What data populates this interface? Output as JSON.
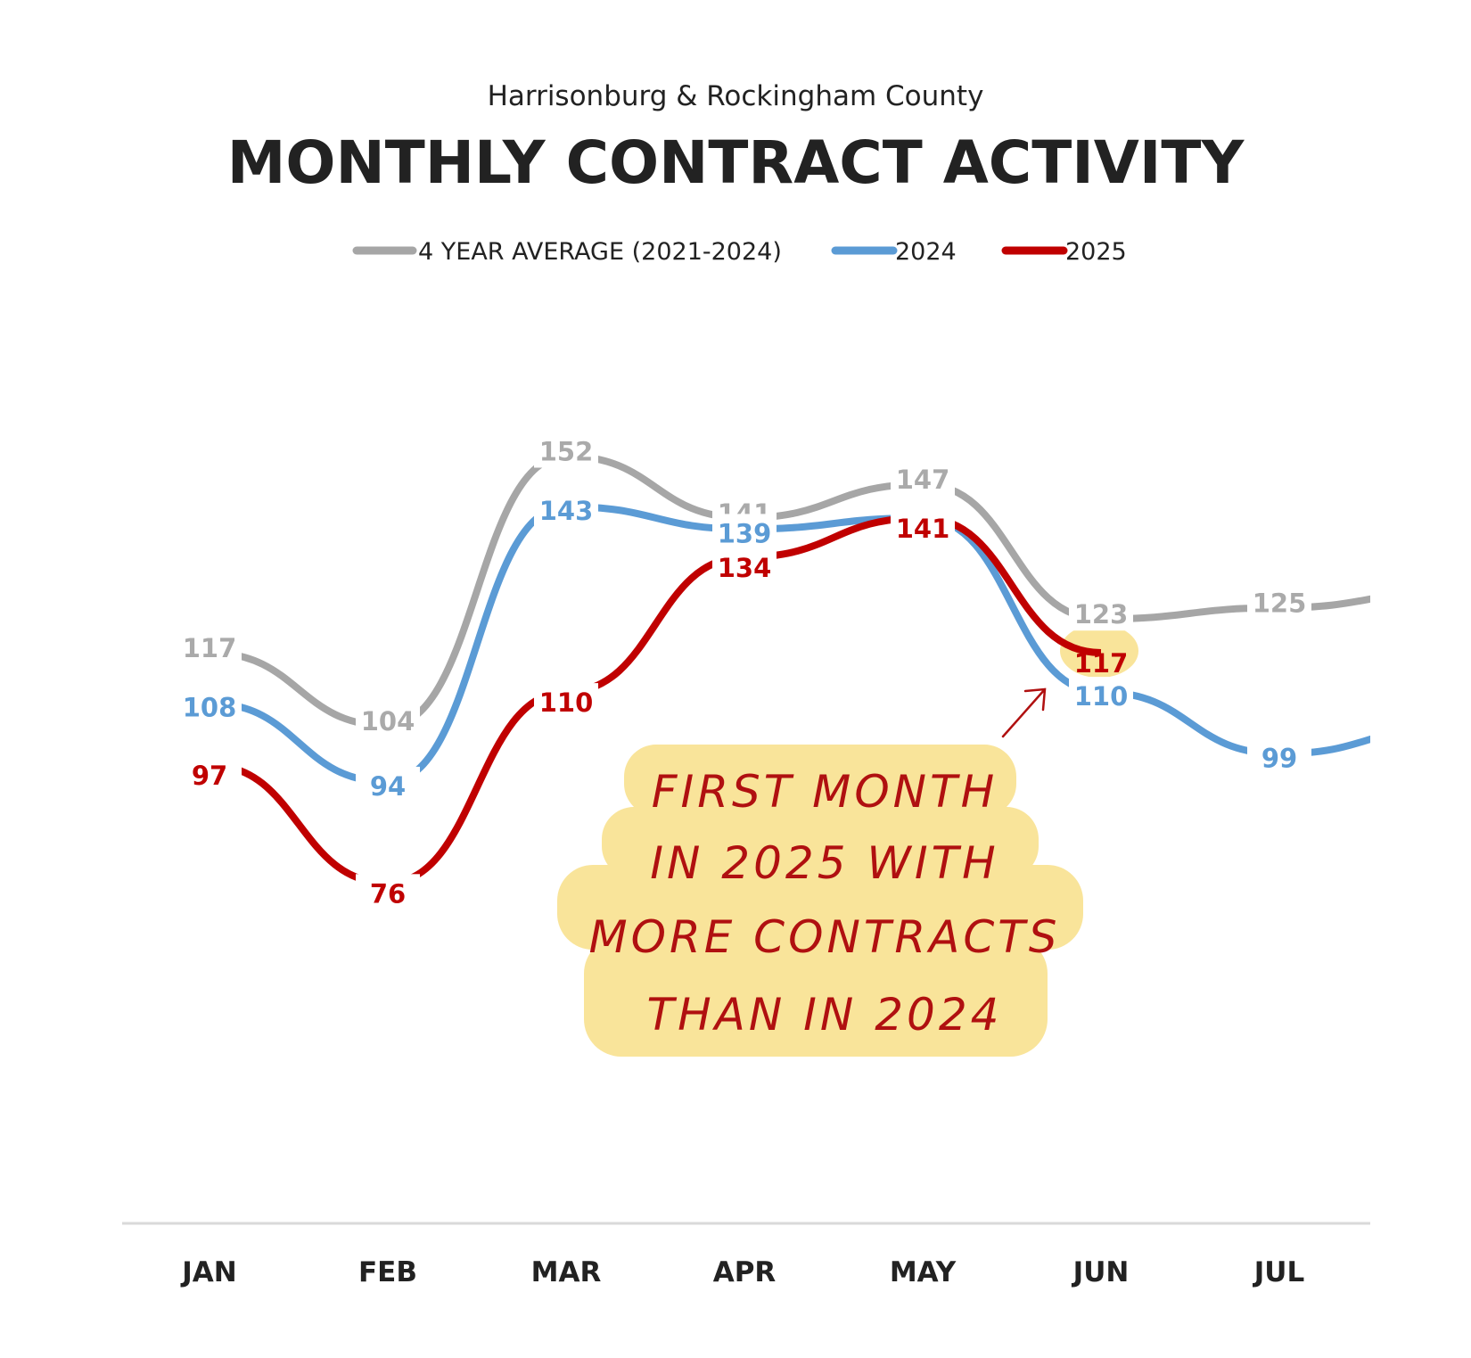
{
  "chart_data": {
    "type": "line",
    "subtitle": "Harrisonburg & Rockingham County",
    "title": "MONTHLY CONTRACT ACTIVITY",
    "categories": [
      "JAN",
      "FEB",
      "MAR",
      "APR",
      "MAY",
      "JUN",
      "JUL"
    ],
    "series": [
      {
        "name": "4 YEAR AVERAGE (2021-2024)",
        "color": "#a6a6a6",
        "label_color": "#aaaaaa",
        "values": [
          117,
          104,
          152,
          141,
          147,
          123,
          125
        ]
      },
      {
        "name": "2024",
        "color": "#5b9bd5",
        "label_color": "#5b9bd5",
        "values": [
          108,
          94,
          143,
          139,
          141,
          110,
          99
        ]
      },
      {
        "name": "2025",
        "color": "#c00000",
        "label_color": "#c00000",
        "values": [
          97,
          76,
          110,
          134,
          141,
          117,
          null
        ]
      }
    ],
    "legend_position": "top-center",
    "y_axis_visible": false,
    "grid": false,
    "annotation": {
      "lines": [
        "FIRST MONTH",
        "IN 2025 WITH",
        "MORE CONTRACTS",
        "THAN IN 2024"
      ],
      "highlight_color": "#f9e49a",
      "target": "JUN"
    }
  }
}
